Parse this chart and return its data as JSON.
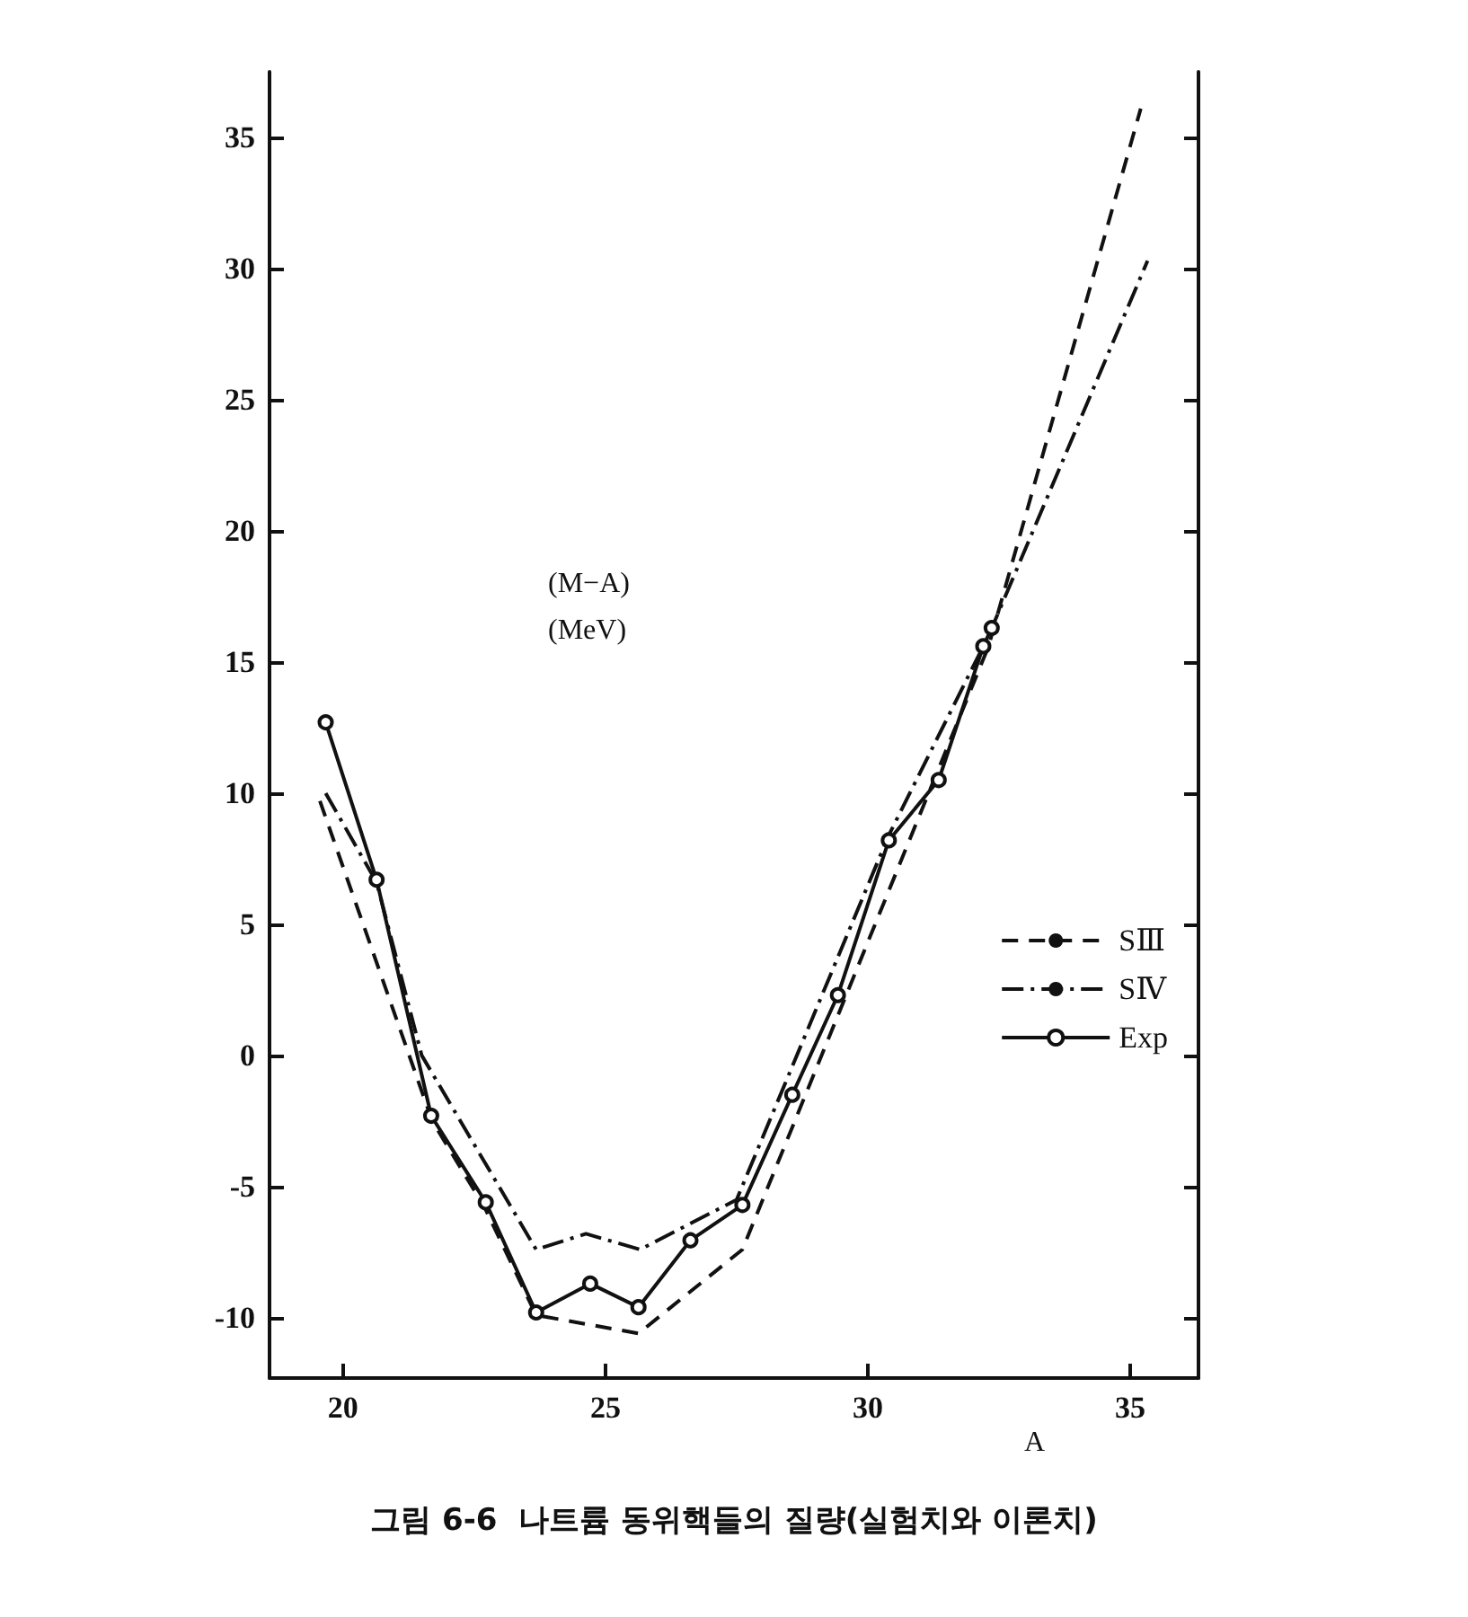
{
  "chart_data": {
    "type": "line",
    "title": "그림 6-6  나트륨 동위핵들의 질량(실험치와 이론치)",
    "xlabel": "A",
    "ylabel": "(M−A)\n(MeV)",
    "xlim": [
      18.6,
      36.3
    ],
    "xticks": [
      20,
      25,
      30,
      35
    ],
    "ylim": [
      -12.3,
      37.5
    ],
    "yticks": [
      -10,
      -5,
      0,
      5,
      10,
      15,
      20,
      25,
      30,
      35
    ],
    "grid": false,
    "legend": "right",
    "series": [
      {
        "name": "SⅢ",
        "color": "#111111",
        "line_style": "dashed",
        "marker": "none",
        "x": [
          19.56,
          21.7,
          22.7,
          23.68,
          25.63,
          27.61,
          32.3,
          35.2
        ],
        "values": [
          9.7,
          -2.5,
          -5.8,
          -9.9,
          -10.6,
          -7.4,
          15.6,
          36.1
        ]
      },
      {
        "name": "SⅣ",
        "color": "#111111",
        "line_style": "dashdot",
        "marker": "none",
        "x": [
          19.67,
          20.64,
          21.5,
          23.68,
          24.63,
          25.66,
          27.5,
          30.4,
          32.3,
          35.33
        ],
        "values": [
          10.0,
          6.6,
          0,
          -7.4,
          -6.8,
          -7.4,
          -5.5,
          8.4,
          16,
          30.3
        ]
      },
      {
        "name": "Exp",
        "color": "#111111",
        "line_style": "solid",
        "marker": "circle",
        "x": [
          19.67,
          20.64,
          21.68,
          22.72,
          23.68,
          24.71,
          25.63,
          26.62,
          27.61,
          28.56,
          29.43,
          30.4,
          31.35,
          32.2,
          32.36
        ],
        "values": [
          12.7,
          6.7,
          -2.3,
          -5.6,
          -9.8,
          -8.7,
          -9.6,
          -7.05,
          -5.7,
          -1.5,
          2.3,
          8.2,
          10.5,
          15.6,
          16.3
        ]
      }
    ]
  }
}
